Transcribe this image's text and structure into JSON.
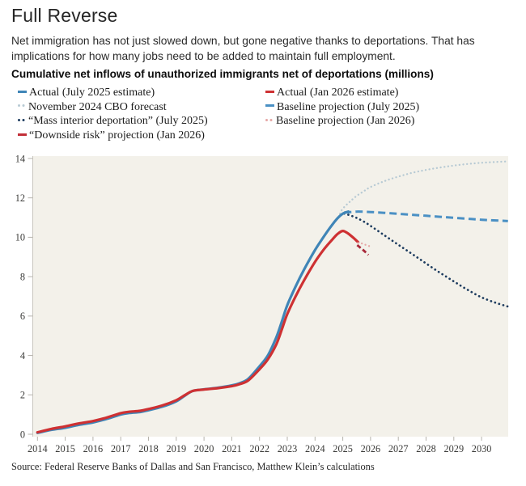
{
  "header": {
    "title": "Full Reverse",
    "subtitle": "Net immigration has not just slowed down, but gone negative thanks to deportations. That has implications for how many jobs need to be added to maintain full employment.",
    "heading": "Cumulative net inflows of unauthorized immigrants net of deportations (millions)"
  },
  "legend": {
    "position": "top",
    "left": [
      {
        "label": "Actual (July 2025 estimate)",
        "color": "#3F85B7",
        "marker": "dash"
      },
      {
        "label": "November 2024 CBO forecast",
        "color": "#B7CAD4",
        "marker": "dots"
      },
      {
        "label": "“Mass interior deportation” (July 2025)",
        "color": "#1D3C5F",
        "marker": "dots"
      },
      {
        "label": "“Downside risk” projection (Jan 2026)",
        "color": "#C22F38",
        "marker": "dash"
      }
    ],
    "right": [
      {
        "label": "Actual (Jan 2026 estimate)",
        "color": "#CE3133",
        "marker": "dash"
      },
      {
        "label": "Baseline projection (July 2025)",
        "color": "#4A90C4",
        "marker": "dash"
      },
      {
        "label": "Baseline projection (Jan 2026)",
        "color": "#E5A7A5",
        "marker": "dots"
      }
    ]
  },
  "footer": {
    "source": "Source: Federal Reserve Banks of Dallas and San Francisco, Matthew Klein’s calculations"
  },
  "chart_data": {
    "type": "line",
    "title": "Cumulative net inflows of unauthorized immigrants net of deportations (millions)",
    "xlabel": "",
    "ylabel": "millions",
    "xlim": [
      2014,
      2030.95
    ],
    "ylim": [
      0,
      14
    ],
    "yticks": [
      0,
      2,
      4,
      6,
      8,
      10,
      12,
      14
    ],
    "xticks": [
      2014,
      2015,
      2016,
      2017,
      2018,
      2019,
      2020,
      2021,
      2022,
      2023,
      2024,
      2025,
      2026,
      2027,
      2028,
      2029,
      2030
    ],
    "grid": false,
    "plot_bg": "#F3F1EA",
    "series": [
      {
        "name": "november-2024-cbo-forecast",
        "label": "November 2024 CBO forecast",
        "color": "#B7CAD4",
        "style": "dotted-fine",
        "x": [
          2024.9,
          2025,
          2025.25,
          2025.5,
          2025.75,
          2026,
          2026.5,
          2027,
          2027.5,
          2028,
          2028.5,
          2029,
          2029.5,
          2030,
          2030.5,
          2030.95
        ],
        "values": [
          11.2,
          11.45,
          11.8,
          12.1,
          12.33,
          12.55,
          12.85,
          13.08,
          13.27,
          13.42,
          13.54,
          13.64,
          13.72,
          13.78,
          13.82,
          13.85
        ]
      },
      {
        "name": "baseline-projection-july-2025",
        "label": "Baseline projection (July 2025)",
        "color": "#4A90C4",
        "style": "dashed",
        "x": [
          2025.05,
          2025.5,
          2026,
          2026.5,
          2027,
          2027.5,
          2028,
          2028.5,
          2029,
          2029.5,
          2030,
          2030.95
        ],
        "values": [
          11.25,
          11.3,
          11.28,
          11.24,
          11.19,
          11.14,
          11.09,
          11.04,
          10.99,
          10.94,
          10.89,
          10.82
        ]
      },
      {
        "name": "mass-interior-deportation-july-2025",
        "label": "“Mass interior deportation” (July 2025)",
        "color": "#1D3C5F",
        "style": "dotted",
        "x": [
          2025.05,
          2025.25,
          2025.5,
          2025.75,
          2026,
          2026.5,
          2027,
          2027.5,
          2028,
          2028.5,
          2029,
          2029.5,
          2030,
          2030.5,
          2030.95
        ],
        "values": [
          11.2,
          11.12,
          10.98,
          10.8,
          10.58,
          10.1,
          9.62,
          9.15,
          8.67,
          8.2,
          7.76,
          7.33,
          6.95,
          6.68,
          6.48
        ]
      },
      {
        "name": "actual-july-2025-estimate",
        "label": "Actual (July 2025 estimate)",
        "color": "#3F85B7",
        "style": "solid",
        "x": [
          2014,
          2014.5,
          2015,
          2015.5,
          2016,
          2016.5,
          2017,
          2017.3,
          2017.7,
          2018,
          2018.5,
          2019,
          2019.3,
          2019.6,
          2020,
          2020.5,
          2021,
          2021.3,
          2021.6,
          2022,
          2022.3,
          2022.6,
          2022.8,
          2023,
          2023.3,
          2023.6,
          2024,
          2024.3,
          2024.6,
          2024.8,
          2025,
          2025.2
        ],
        "values": [
          0.07,
          0.22,
          0.33,
          0.48,
          0.6,
          0.78,
          1.0,
          1.08,
          1.13,
          1.22,
          1.4,
          1.67,
          1.95,
          2.2,
          2.28,
          2.36,
          2.48,
          2.6,
          2.82,
          3.45,
          4.0,
          4.9,
          5.7,
          6.55,
          7.5,
          8.35,
          9.35,
          10.0,
          10.6,
          10.95,
          11.2,
          11.3
        ]
      },
      {
        "name": "actual-jan-2026-estimate",
        "label": "Actual (Jan 2026 estimate)",
        "color": "#CE3133",
        "style": "solid",
        "x": [
          2014,
          2014.5,
          2015,
          2015.5,
          2016,
          2016.5,
          2017,
          2017.3,
          2017.7,
          2018,
          2018.5,
          2019,
          2019.3,
          2019.6,
          2020,
          2020.5,
          2021,
          2021.3,
          2021.6,
          2022,
          2022.3,
          2022.6,
          2022.8,
          2023,
          2023.3,
          2023.6,
          2024,
          2024.3,
          2024.6,
          2024.8,
          2025,
          2025.2,
          2025.4,
          2025.55
        ],
        "values": [
          0.1,
          0.27,
          0.4,
          0.55,
          0.67,
          0.85,
          1.07,
          1.14,
          1.19,
          1.28,
          1.46,
          1.73,
          1.98,
          2.2,
          2.27,
          2.34,
          2.44,
          2.55,
          2.74,
          3.3,
          3.8,
          4.55,
          5.3,
          6.1,
          7.0,
          7.8,
          8.75,
          9.35,
          9.85,
          10.15,
          10.32,
          10.18,
          9.95,
          9.75
        ]
      },
      {
        "name": "baseline-projection-jan-2026",
        "label": "Baseline projection (Jan 2026)",
        "color": "#E5A7A5",
        "style": "dotted-fine",
        "x": [
          2025.55,
          2025.7,
          2025.85,
          2026
        ],
        "values": [
          9.72,
          9.68,
          9.6,
          9.53
        ]
      },
      {
        "name": "downside-risk-projection-jan-2026",
        "label": "“Downside risk” projection (Jan 2026)",
        "color": "#A8293A",
        "style": "dashed-short",
        "x": [
          2025.52,
          2025.65,
          2025.8,
          2025.92
        ],
        "values": [
          9.6,
          9.45,
          9.27,
          9.1
        ]
      }
    ]
  }
}
